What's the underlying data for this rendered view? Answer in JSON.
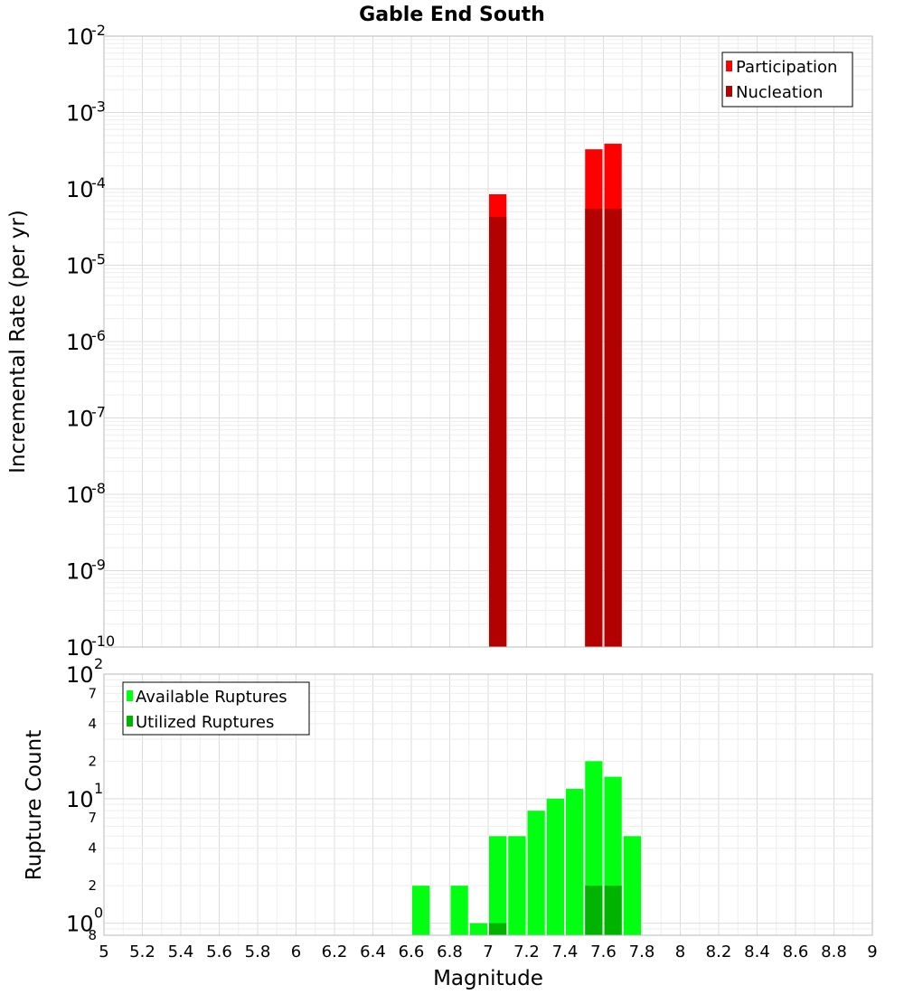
{
  "title": "Gable End South",
  "colors": {
    "participation": "#ff0000",
    "nucleation": "#b30000",
    "available": "#00ff11",
    "utilized": "#00b300"
  },
  "chart_data": [
    {
      "type": "bar",
      "title": "Gable End South",
      "xlabel": "Magnitude",
      "ylabel": "Incremental Rate (per yr)",
      "yscale": "log",
      "xlim": [
        5,
        9
      ],
      "ylim": [
        1e-10,
        0.01
      ],
      "bin_width": 0.1,
      "y_tick_labels": [
        {
          "base": "10",
          "exp": "-10"
        },
        {
          "base": "10",
          "exp": "-9"
        },
        {
          "base": "10",
          "exp": "-8"
        },
        {
          "base": "10",
          "exp": "-7"
        },
        {
          "base": "10",
          "exp": "-6"
        },
        {
          "base": "10",
          "exp": "-5"
        },
        {
          "base": "10",
          "exp": "-4"
        },
        {
          "base": "10",
          "exp": "-3"
        },
        {
          "base": "10",
          "exp": "-2"
        }
      ],
      "legend": [
        "Participation",
        "Nucleation"
      ],
      "legend_position": "top-right",
      "series": [
        {
          "name": "Participation",
          "x": [
            7.05,
            7.55,
            7.65
          ],
          "values": [
            8.5e-05,
            0.00033,
            0.00039
          ]
        },
        {
          "name": "Nucleation",
          "x": [
            7.05,
            7.55,
            7.65
          ],
          "values": [
            4.3e-05,
            5.5e-05,
            5.5e-05
          ]
        }
      ]
    },
    {
      "type": "bar",
      "xlabel": "Magnitude",
      "ylabel": "Rupture Count",
      "yscale": "log",
      "xlim": [
        5,
        9
      ],
      "ylim": [
        0.8,
        100
      ],
      "bin_width": 0.1,
      "x_ticks": [
        "5",
        "5.2",
        "5.4",
        "5.6",
        "5.8",
        "6",
        "6.2",
        "6.4",
        "6.6",
        "6.8",
        "7",
        "7.2",
        "7.4",
        "7.6",
        "7.8",
        "8",
        "8.2",
        "8.4",
        "8.6",
        "8.8",
        "9"
      ],
      "y_tick_labels": [
        {
          "base": "10",
          "exp": "0"
        },
        {
          "base": "10",
          "exp": "1"
        },
        {
          "base": "10",
          "exp": "2"
        }
      ],
      "y_minor_labels": [
        "8",
        "2",
        "4",
        "7",
        "2",
        "4",
        "7"
      ],
      "legend": [
        "Available Ruptures",
        "Utilized Ruptures"
      ],
      "legend_position": "top-left",
      "series": [
        {
          "name": "Available Ruptures",
          "x": [
            6.65,
            6.85,
            6.95,
            7.05,
            7.15,
            7.25,
            7.35,
            7.45,
            7.55,
            7.65,
            7.75
          ],
          "values": [
            2,
            2,
            1,
            5,
            5,
            8,
            10,
            12,
            20,
            15,
            5
          ]
        },
        {
          "name": "Utilized Ruptures",
          "x": [
            7.05,
            7.55,
            7.65
          ],
          "values": [
            1,
            2,
            2
          ]
        }
      ]
    }
  ]
}
